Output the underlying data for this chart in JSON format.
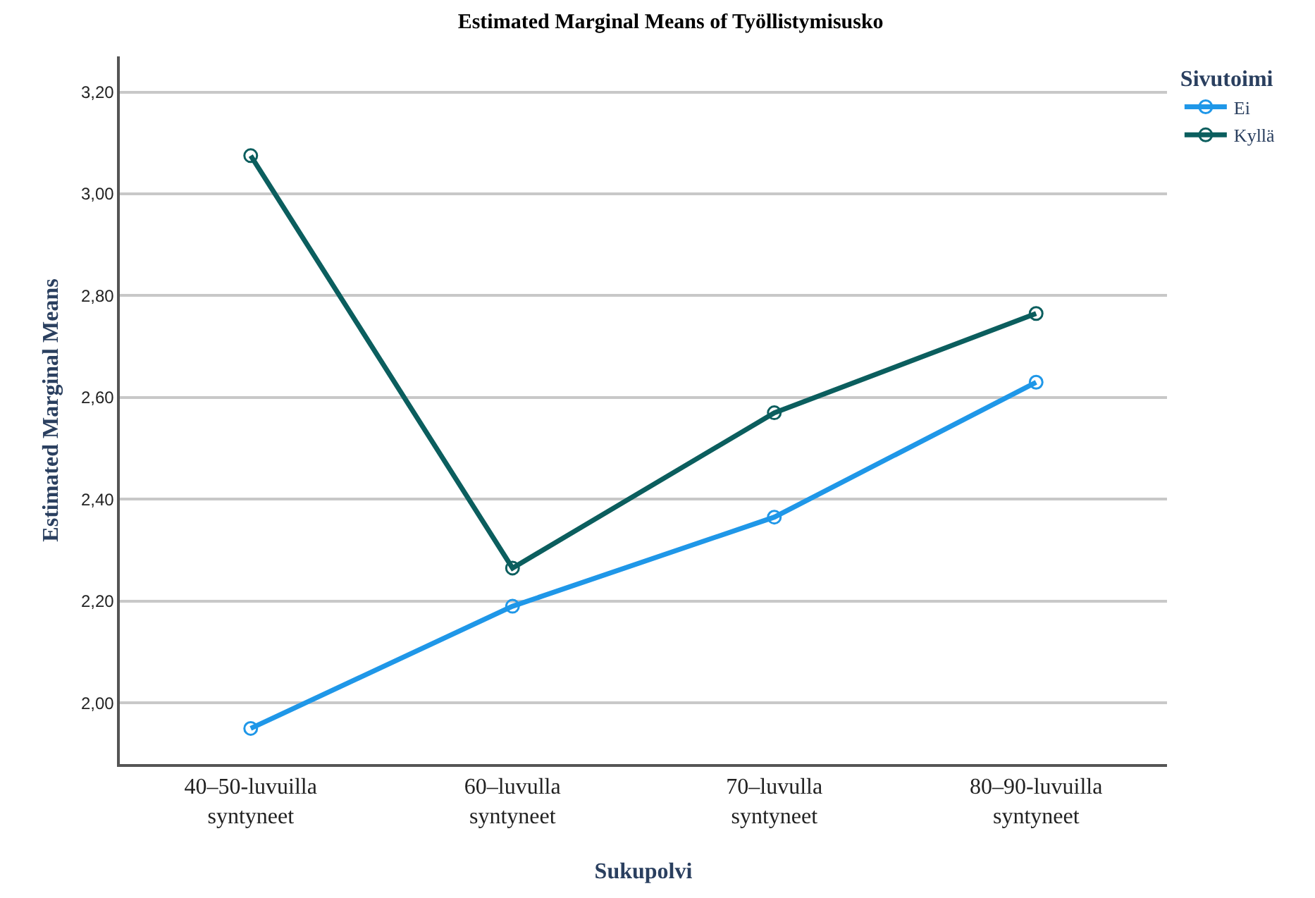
{
  "chart_data": {
    "type": "line",
    "title": "Estimated Marginal Means of Työllistymisusko",
    "xlabel": "Sukupolvi",
    "ylabel": "Estimated Marginal Means",
    "legend_title": "Sivutoimi",
    "categories": [
      "40–50-luvuilla syntyneet",
      "60–luvulla syntyneet",
      "70–luvulla syntyneet",
      "80–90-luvuilla syntyneet"
    ],
    "series": [
      {
        "name": "Ei",
        "color": "#1f97e8",
        "values": [
          1.95,
          2.19,
          2.365,
          2.63
        ]
      },
      {
        "name": "Kyllä",
        "color": "#0b5e5e",
        "values": [
          3.075,
          2.265,
          2.57,
          2.765
        ]
      }
    ],
    "ylim": [
      1.88,
      3.27
    ],
    "yticks": [
      {
        "value": 2.0,
        "label": "2,00"
      },
      {
        "value": 2.2,
        "label": "2,20"
      },
      {
        "value": 2.4,
        "label": "2,40"
      },
      {
        "value": 2.6,
        "label": "2,60"
      },
      {
        "value": 2.8,
        "label": "2,80"
      },
      {
        "value": 3.0,
        "label": "3,00"
      },
      {
        "value": 3.2,
        "label": "3,20"
      }
    ],
    "grid": "y",
    "legend": "top right",
    "marker": "circle",
    "line_style": "solid"
  }
}
